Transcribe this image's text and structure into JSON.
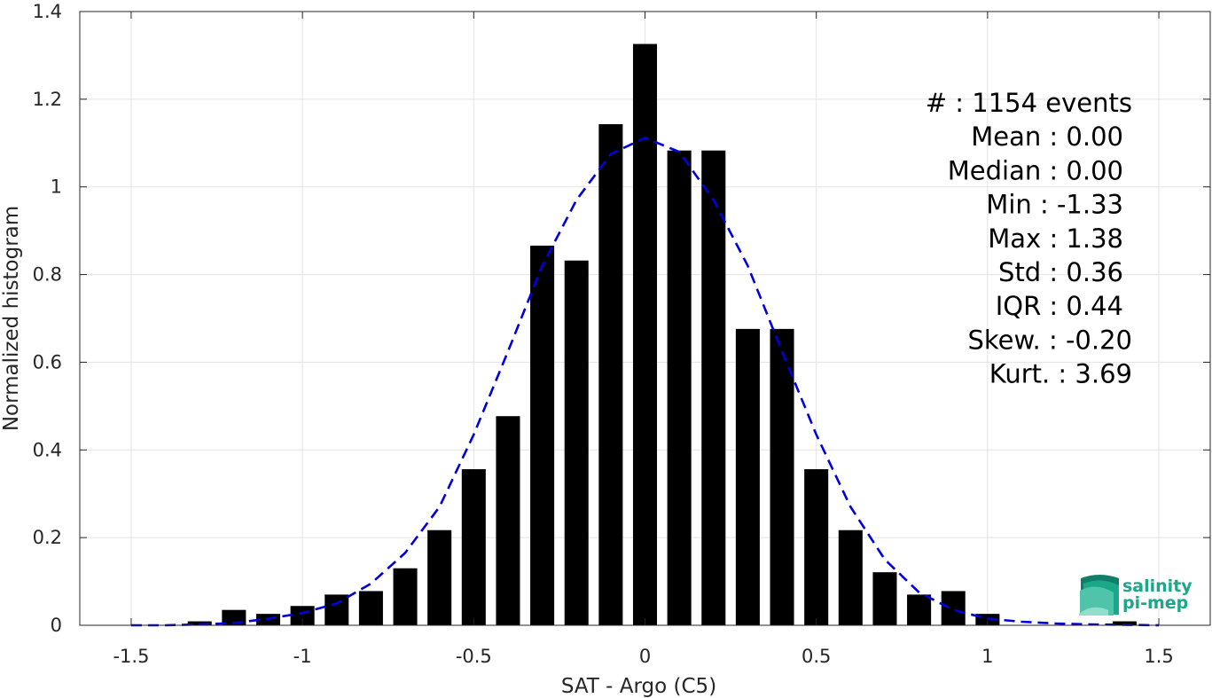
{
  "chart_data": {
    "type": "bar",
    "xlabel": "SAT - Argo (C5)",
    "ylabel": "Normalized histogram",
    "xlim": [
      -1.65,
      1.65
    ],
    "ylim": [
      0,
      1.4
    ],
    "xticks": [
      -1.5,
      -1,
      -0.5,
      0,
      0.5,
      1,
      1.5
    ],
    "xtick_labels": [
      "-1.5",
      "-1",
      "-0.5",
      "0",
      "0.5",
      "1",
      "1.5"
    ],
    "yticks": [
      0,
      0.2,
      0.4,
      0.6,
      0.8,
      1,
      1.2,
      1.4
    ],
    "ytick_labels": [
      "0",
      "0.2",
      "0.4",
      "0.6",
      "0.8",
      "1",
      "1.2",
      "1.4"
    ],
    "grid": true,
    "bar_width": 0.07,
    "bars": {
      "x": [
        -1.3,
        -1.2,
        -1.1,
        -1.0,
        -0.9,
        -0.8,
        -0.7,
        -0.6,
        -0.5,
        -0.4,
        -0.3,
        -0.2,
        -0.1,
        0.0,
        0.1,
        0.2,
        0.3,
        0.4,
        0.5,
        0.6,
        0.7,
        0.8,
        0.9,
        1.0,
        1.1,
        1.2,
        1.3,
        1.4
      ],
      "values": [
        0.009,
        0.035,
        0.026,
        0.044,
        0.07,
        0.078,
        0.13,
        0.217,
        0.356,
        0.477,
        0.866,
        0.832,
        1.143,
        1.326,
        1.083,
        1.083,
        0.676,
        0.676,
        0.356,
        0.217,
        0.121,
        0.07,
        0.078,
        0.026,
        0,
        0,
        0,
        0.009
      ]
    },
    "fit": {
      "style": "dashed",
      "color": "#0000dd",
      "x": [
        -1.5,
        -1.4,
        -1.3,
        -1.2,
        -1.1,
        -1.0,
        -0.9,
        -0.8,
        -0.7,
        -0.6,
        -0.5,
        -0.4,
        -0.3,
        -0.2,
        -0.1,
        0.0,
        0.1,
        0.2,
        0.3,
        0.4,
        0.5,
        0.6,
        0.7,
        0.8,
        0.9,
        1.0,
        1.1,
        1.2,
        1.3,
        1.4,
        1.5
      ],
      "y": [
        0.0,
        0.0,
        0.002,
        0.005,
        0.015,
        0.028,
        0.05,
        0.095,
        0.165,
        0.27,
        0.435,
        0.625,
        0.82,
        0.97,
        1.075,
        1.112,
        1.08,
        0.97,
        0.82,
        0.625,
        0.435,
        0.27,
        0.15,
        0.075,
        0.035,
        0.015,
        0.008,
        0.004,
        0.002,
        0.001,
        0.0
      ]
    }
  },
  "stats": [
    {
      "text": "#  : 1154 events",
      "anchor": "end",
      "right": 1277
    },
    {
      "text": "Mean : 0.00",
      "anchor": "end",
      "right": 1267
    },
    {
      "text": "Median : 0.00",
      "anchor": "end",
      "right": 1267
    },
    {
      "text": "Min : -1.33",
      "anchor": "end",
      "right": 1267
    },
    {
      "text": "Max : 1.38",
      "anchor": "end",
      "right": 1267
    },
    {
      "text": "Std : 0.36",
      "anchor": "end",
      "right": 1267
    },
    {
      "text": "IQR : 0.44",
      "anchor": "end",
      "right": 1267
    },
    {
      "text": "Skew. : -0.20",
      "anchor": "end",
      "right": 1277
    },
    {
      "text": "Kurt. : 3.69",
      "anchor": "end",
      "right": 1277
    }
  ],
  "logo": {
    "line1": "salinity",
    "line2": "pi-mep",
    "color": "#1aa889"
  }
}
